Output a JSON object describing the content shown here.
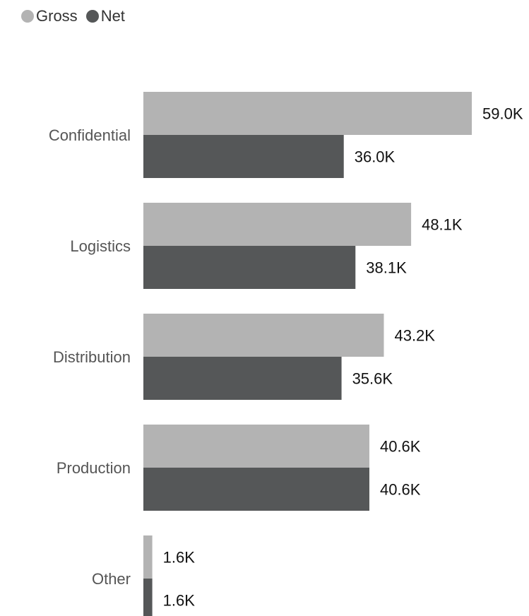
{
  "legend": {
    "items": [
      {
        "label": "Gross",
        "color": "#b3b3b3"
      },
      {
        "label": "Net",
        "color": "#555758"
      }
    ]
  },
  "chart_data": {
    "type": "bar",
    "orientation": "horizontal",
    "categories": [
      "Confidential",
      "Logistics",
      "Distribution",
      "Production",
      "Other"
    ],
    "series": [
      {
        "name": "Gross",
        "values": [
          59.0,
          48.1,
          43.2,
          40.6,
          1.6
        ],
        "labels": [
          "59.0K",
          "48.1K",
          "43.2K",
          "40.6K",
          "1.6K"
        ],
        "color": "#b3b3b3"
      },
      {
        "name": "Net",
        "values": [
          36.0,
          38.1,
          35.6,
          40.6,
          1.6
        ],
        "labels": [
          "36.0K",
          "38.1K",
          "35.6K",
          "40.6K",
          "1.6K"
        ],
        "color": "#555758"
      }
    ],
    "value_unit": "K",
    "xlim": [
      0,
      59.0
    ],
    "legend_position": "top-left",
    "grid": false
  }
}
